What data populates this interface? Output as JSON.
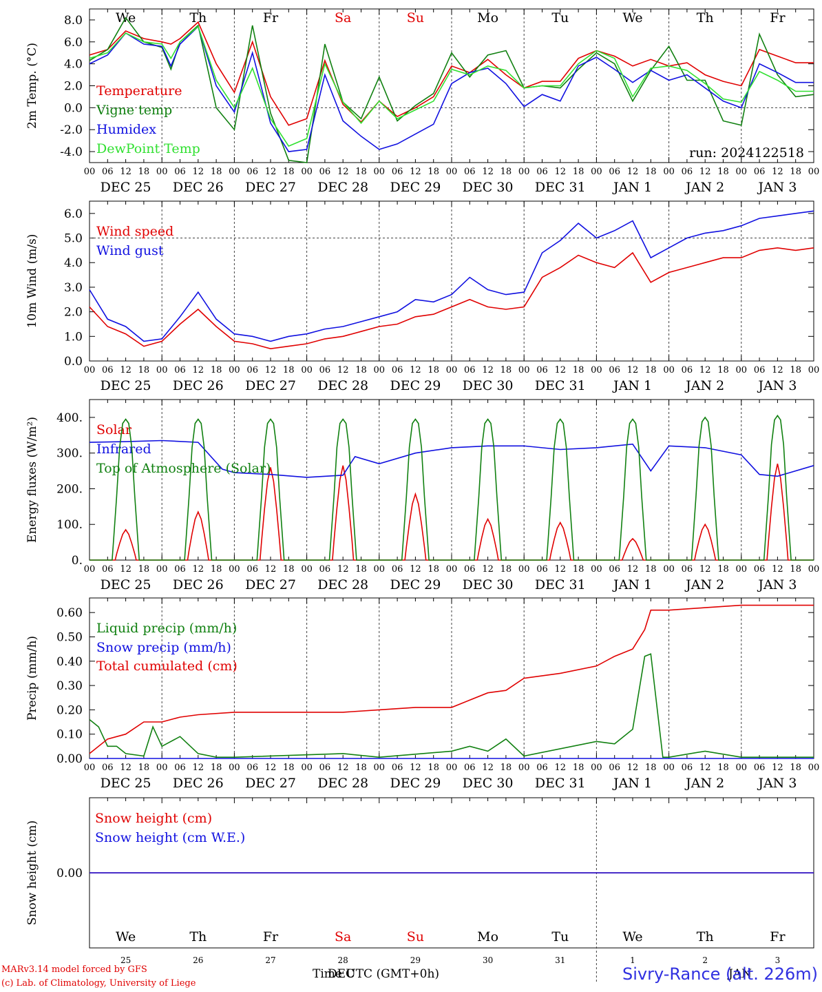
{
  "header": {
    "day_letters": [
      "We",
      "Th",
      "Fr",
      "Sa",
      "Su",
      "Mo",
      "Tu",
      "We",
      "Th",
      "Fr"
    ],
    "weekend_color": "#e00000",
    "run_label": "run: 2024122518"
  },
  "axis": {
    "hour_ticks": [
      "00",
      "06",
      "12",
      "18"
    ],
    "date_labels": [
      "DEC 25",
      "DEC 26",
      "DEC 27",
      "DEC 28",
      "DEC 29",
      "DEC 30",
      "DEC 31",
      "JAN  1",
      "JAN  2",
      "JAN  3"
    ],
    "bottom_day_numbers": [
      "25",
      "26",
      "27",
      "28",
      "29",
      "30",
      "31",
      "1",
      "2",
      "3"
    ],
    "xlabel": "Time UTC (GMT+0h)",
    "bottom_month_labels": [
      "DEC",
      "JAN"
    ]
  },
  "footer": {
    "model_line": "MARv3.14 model forced by GFS",
    "lab_line": "(c) Lab. of Climatology, University of Liege",
    "station": "Sivry-Rance (alt. 226m)"
  },
  "colors": {
    "red": "#e00000",
    "green": "#108010",
    "blue": "#1010e0",
    "lightgreen": "#30e030",
    "grid": "#404040"
  },
  "chart_data": [
    {
      "type": "line",
      "ylabel": "2m Temp. (°C)",
      "ylim": [
        -5.0,
        9.0
      ],
      "yticks": [
        "8.0",
        "6.0",
        "4.0",
        "2.0",
        "0.0",
        "-2.0",
        "-4.0"
      ],
      "ytick_values": [
        8,
        6,
        4,
        2,
        0,
        -2,
        -4
      ],
      "refline": 0,
      "x_hours": [
        0,
        6,
        12,
        18,
        24,
        27,
        30,
        36,
        42,
        48,
        54,
        60,
        66,
        72,
        78,
        84,
        90,
        96,
        102,
        108,
        114,
        120,
        126,
        132,
        138,
        144,
        150,
        156,
        162,
        168,
        174,
        180,
        186,
        192,
        198,
        204,
        210,
        216,
        222,
        228,
        234,
        240
      ],
      "series": [
        {
          "name": "Temperature",
          "color": "red",
          "values": [
            4.8,
            5.3,
            7.0,
            6.3,
            6.0,
            5.8,
            6.3,
            7.8,
            4.0,
            1.4,
            6.0,
            1.0,
            -1.6,
            -1.0,
            4.3,
            0.3,
            -1.3,
            0.6,
            -0.8,
            0.0,
            1.0,
            3.8,
            3.2,
            4.4,
            3.0,
            1.8,
            2.4,
            2.4,
            4.5,
            5.2,
            4.7,
            3.8,
            4.4,
            3.8,
            4.1,
            3.0,
            2.4,
            2.0,
            5.3,
            4.7,
            4.1,
            4.1
          ]
        },
        {
          "name": "Vigne temp",
          "color": "green",
          "values": [
            4.3,
            5.3,
            8.2,
            6.0,
            5.5,
            3.5,
            6.0,
            7.5,
            0.0,
            -2.0,
            7.5,
            -0.5,
            -4.8,
            -5.0,
            5.8,
            0.5,
            -1.0,
            2.8,
            -1.2,
            0.2,
            1.3,
            5.0,
            2.8,
            4.8,
            5.2,
            1.8,
            2.0,
            1.8,
            3.5,
            5.0,
            4.0,
            0.6,
            3.4,
            5.6,
            2.5,
            2.5,
            -1.2,
            -1.6,
            6.7,
            3.0,
            1.0,
            1.2
          ]
        },
        {
          "name": "Humidex",
          "color": "blue",
          "values": [
            4.0,
            4.8,
            6.8,
            5.8,
            5.6,
            3.8,
            5.8,
            7.4,
            2.0,
            -0.4,
            5.0,
            -1.4,
            -4.0,
            -3.8,
            3.0,
            -1.2,
            -2.6,
            -3.8,
            -3.3,
            -2.4,
            -1.5,
            2.2,
            3.2,
            3.6,
            2.2,
            0.1,
            1.2,
            0.6,
            3.8,
            4.6,
            3.5,
            2.3,
            3.4,
            2.5,
            3.0,
            1.8,
            0.6,
            0.0,
            4.0,
            3.2,
            2.3,
            2.3
          ]
        },
        {
          "name": "DewPoint Temp",
          "color": "lightgreen",
          "values": [
            4.5,
            5.0,
            6.8,
            6.0,
            5.8,
            4.5,
            6.0,
            7.4,
            2.5,
            0.0,
            3.6,
            -1.0,
            -3.5,
            -2.8,
            4.0,
            0.5,
            -1.4,
            0.6,
            -1.0,
            -0.2,
            0.6,
            3.5,
            3.0,
            3.8,
            3.4,
            1.8,
            2.0,
            2.0,
            4.0,
            5.2,
            4.5,
            1.0,
            3.6,
            3.8,
            3.4,
            2.2,
            0.8,
            0.5,
            3.3,
            2.5,
            1.5,
            1.5
          ]
        }
      ]
    },
    {
      "type": "line",
      "ylabel": "10m Wind (m/s)",
      "ylim": [
        0.0,
        6.5
      ],
      "yticks": [
        "6.0",
        "5.0",
        "4.0",
        "3.0",
        "2.0",
        "1.0",
        "0.0"
      ],
      "ytick_values": [
        6,
        5,
        4,
        3,
        2,
        1,
        0
      ],
      "refline": 5,
      "x_hours": [
        0,
        6,
        12,
        18,
        24,
        30,
        36,
        42,
        48,
        54,
        60,
        66,
        72,
        78,
        84,
        90,
        96,
        102,
        108,
        114,
        120,
        126,
        132,
        138,
        144,
        150,
        156,
        162,
        168,
        174,
        180,
        186,
        192,
        198,
        204,
        210,
        216,
        222,
        228,
        234,
        240
      ],
      "series": [
        {
          "name": "Wind speed",
          "color": "red",
          "values": [
            2.2,
            1.4,
            1.1,
            0.6,
            0.8,
            1.5,
            2.1,
            1.4,
            0.8,
            0.7,
            0.5,
            0.6,
            0.7,
            0.9,
            1.0,
            1.2,
            1.4,
            1.5,
            1.8,
            1.9,
            2.2,
            2.5,
            2.2,
            2.1,
            2.2,
            3.4,
            3.8,
            4.3,
            4.0,
            3.8,
            4.4,
            3.2,
            3.6,
            3.8,
            4.0,
            4.2,
            4.2,
            4.5,
            4.6,
            4.5,
            4.6
          ]
        },
        {
          "name": "Wind gust",
          "color": "blue",
          "values": [
            2.9,
            1.7,
            1.4,
            0.8,
            0.9,
            1.8,
            2.8,
            1.7,
            1.1,
            1.0,
            0.8,
            1.0,
            1.1,
            1.3,
            1.4,
            1.6,
            1.8,
            2.0,
            2.5,
            2.4,
            2.7,
            3.4,
            2.9,
            2.7,
            2.8,
            4.4,
            4.9,
            5.6,
            5.0,
            5.3,
            5.7,
            4.2,
            4.6,
            5.0,
            5.2,
            5.3,
            5.5,
            5.8,
            5.9,
            6.0,
            6.1
          ]
        }
      ]
    },
    {
      "type": "line",
      "ylabel": "Energy fluxes (W/m²)",
      "ylim": [
        0,
        450
      ],
      "yticks": [
        "400.",
        "300.",
        "200.",
        "100.",
        "0."
      ],
      "ytick_values": [
        400,
        300,
        200,
        100,
        0
      ],
      "series": [
        {
          "name": "Solar",
          "color": "red",
          "daily_peaks": [
            85,
            135,
            260,
            265,
            185,
            115,
            105,
            60,
            100,
            270
          ]
        },
        {
          "name": "Infrared",
          "color": "blue",
          "x_hours": [
            0,
            12,
            24,
            36,
            44,
            48,
            60,
            72,
            84,
            88,
            96,
            108,
            120,
            132,
            144,
            156,
            168,
            180,
            186,
            192,
            204,
            216,
            222,
            228,
            240
          ],
          "values": [
            330,
            332,
            335,
            330,
            255,
            245,
            240,
            232,
            238,
            290,
            270,
            300,
            315,
            320,
            320,
            310,
            315,
            325,
            250,
            320,
            315,
            295,
            240,
            235,
            265
          ]
        },
        {
          "name": "Top of Atmosphere (Solar)",
          "color": "green",
          "daily_peaks": [
            395,
            395,
            395,
            395,
            395,
            395,
            395,
            395,
            400,
            405
          ]
        }
      ]
    },
    {
      "type": "line",
      "ylabel": "Precip (mm/h)",
      "ylim": [
        0.0,
        0.66
      ],
      "yticks": [
        "0.60",
        "0.50",
        "0.40",
        "0.30",
        "0.20",
        "0.10",
        "0.00"
      ],
      "ytick_values": [
        0.6,
        0.5,
        0.4,
        0.3,
        0.2,
        0.1,
        0.0
      ],
      "series": [
        {
          "name": "Liquid precip (mm/h)",
          "color": "green",
          "x_hours": [
            0,
            3,
            6,
            9,
            12,
            18,
            21,
            24,
            30,
            36,
            42,
            48,
            84,
            96,
            120,
            126,
            132,
            138,
            144,
            168,
            174,
            180,
            184,
            186,
            190,
            192,
            204,
            216,
            240
          ],
          "values": [
            0.16,
            0.13,
            0.05,
            0.05,
            0.02,
            0.01,
            0.13,
            0.05,
            0.09,
            0.02,
            0.005,
            0.005,
            0.02,
            0.005,
            0.03,
            0.05,
            0.03,
            0.08,
            0.01,
            0.07,
            0.06,
            0.12,
            0.42,
            0.43,
            0.005,
            0.005,
            0.03,
            0.005,
            0.005
          ]
        },
        {
          "name": "Snow precip (mm/h)",
          "color": "blue",
          "x_hours": [
            0,
            240
          ],
          "values": [
            0,
            0
          ]
        },
        {
          "name": "Total cumulated (cm)",
          "color": "red",
          "x_hours": [
            0,
            6,
            12,
            18,
            24,
            30,
            36,
            48,
            60,
            72,
            84,
            96,
            108,
            120,
            126,
            132,
            138,
            144,
            156,
            168,
            174,
            180,
            184,
            186,
            192,
            204,
            216,
            240
          ],
          "values": [
            0.02,
            0.08,
            0.1,
            0.15,
            0.15,
            0.17,
            0.18,
            0.19,
            0.19,
            0.19,
            0.19,
            0.2,
            0.21,
            0.21,
            0.24,
            0.27,
            0.28,
            0.33,
            0.35,
            0.38,
            0.42,
            0.45,
            0.53,
            0.61,
            0.61,
            0.62,
            0.63,
            0.63
          ]
        }
      ]
    },
    {
      "type": "line",
      "ylabel": "Snow height (cm)",
      "ylim": [
        -1,
        1
      ],
      "yticks": [
        "0.00"
      ],
      "ytick_values": [
        0
      ],
      "series": [
        {
          "name": "Snow height (cm)",
          "color": "red",
          "x_hours": [
            0,
            240
          ],
          "values": [
            0,
            0
          ]
        },
        {
          "name": "Snow height (cm W.E.)",
          "color": "blue",
          "x_hours": [
            0,
            240
          ],
          "values": [
            0,
            0
          ]
        }
      ]
    }
  ]
}
